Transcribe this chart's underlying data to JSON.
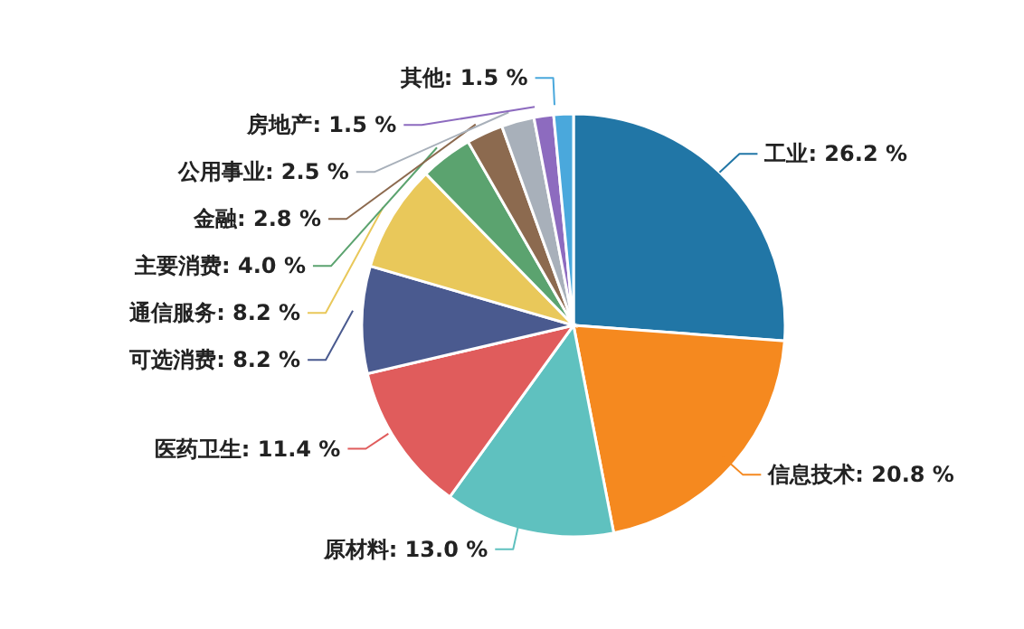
{
  "chart_data": {
    "type": "pie",
    "categories": [
      "工业",
      "信息技术",
      "原材料",
      "医药卫生",
      "可选消费",
      "通信服务",
      "主要消费",
      "金融",
      "公用事业",
      "房地产",
      "其他"
    ],
    "values": [
      26.2,
      20.8,
      13.0,
      11.4,
      8.2,
      8.2,
      4.0,
      2.8,
      2.5,
      1.5,
      1.5
    ],
    "value_labels": [
      "26.2 %",
      "20.8 %",
      "13.0 %",
      "11.4 %",
      "8.2 %",
      "8.2 %",
      "4.0 %",
      "2.8 %",
      "2.5 %",
      "1.5 %",
      "1.5 %"
    ],
    "colors": [
      "#2176a6",
      "#f5891f",
      "#5fc1bf",
      "#e05c5c",
      "#4a5a8f",
      "#e9c85a",
      "#5ba36f",
      "#8c6a4f",
      "#a8b0ba",
      "#8d6bbf",
      "#4aa8dc"
    ]
  }
}
